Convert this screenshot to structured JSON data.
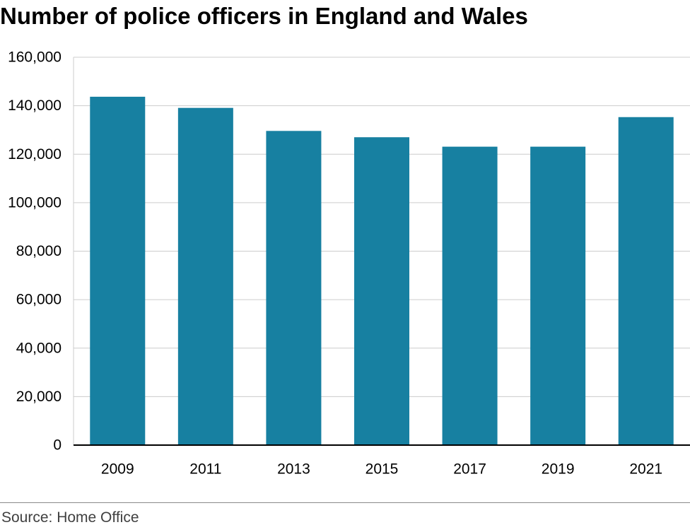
{
  "header": {
    "title": "Number of police officers in England and Wales"
  },
  "footer": {
    "source": "Source: Home Office"
  },
  "colors": {
    "bar": "#1780a1",
    "grid": "#cccccc",
    "axis": "#000000",
    "text": "#000000",
    "source_text": "#404040"
  },
  "chart_data": {
    "type": "bar",
    "title": "Number of police officers in England and Wales",
    "categories": [
      "2009",
      "2011",
      "2013",
      "2015",
      "2017",
      "2019",
      "2021"
    ],
    "values": [
      143700,
      139100,
      129600,
      127000,
      123100,
      123100,
      135300
    ],
    "ylim": [
      0,
      160000
    ],
    "yticks": [
      0,
      20000,
      40000,
      60000,
      80000,
      100000,
      120000,
      140000,
      160000
    ],
    "ytick_labels": [
      "0",
      "20,000",
      "40,000",
      "60,000",
      "80,000",
      "100,000",
      "120,000",
      "140,000",
      "160,000"
    ],
    "xlabel": "",
    "ylabel": "",
    "grid": true,
    "legend": "none"
  }
}
